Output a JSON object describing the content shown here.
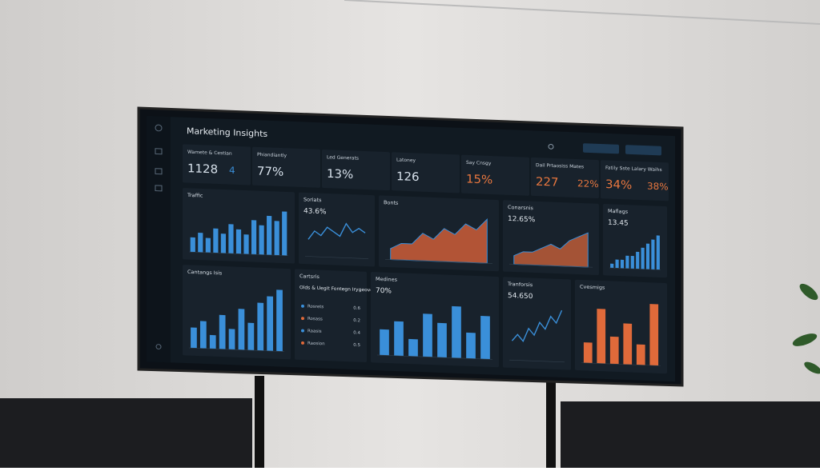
{
  "header": {
    "title": "Marketing Insights"
  },
  "kpis": [
    {
      "label": "Wamete & Cestian",
      "value": "1128",
      "extra": "4"
    },
    {
      "label": "Phiandiantly",
      "value": "77%"
    },
    {
      "label": "Led Generats",
      "value": "13%"
    },
    {
      "label": "Latoney",
      "value": "126"
    },
    {
      "label": "Say Cnsgy",
      "value": "15%"
    },
    {
      "label": "Dail Prtaosiss Mates",
      "value": "227",
      "extra": "22%"
    },
    {
      "label": "Fatily Sste Lalary Waihs",
      "value": "34%",
      "extra": "38%"
    }
  ],
  "panels": [
    {
      "title": "Traffic",
      "kind": "bar",
      "color": "#3a8fd9",
      "values": [
        3,
        4,
        3,
        5,
        4,
        6,
        5,
        4,
        7,
        6,
        8,
        7,
        9
      ]
    },
    {
      "title": "Soriats",
      "stat": "43.6%",
      "kind": "line",
      "color": "#3a8fd9",
      "values": [
        4,
        6,
        5,
        7,
        6,
        5,
        8,
        6,
        7,
        6
      ]
    },
    {
      "title": "Bonts",
      "kind": "area",
      "color": "#d9623a",
      "values": [
        2,
        3,
        3,
        5,
        4,
        6,
        5,
        7,
        6,
        8
      ]
    },
    {
      "title": "Conarsnis",
      "stat": "12.65%",
      "kind": "area",
      "color": "#c8603a",
      "values": [
        2,
        3,
        3,
        4,
        5,
        4,
        6,
        7,
        8
      ]
    },
    {
      "title": "Maflags",
      "stat": "13.45",
      "kind": "bar",
      "color": "#3a8fd9",
      "values": [
        1,
        2,
        2,
        3,
        3,
        4,
        5,
        6,
        7,
        8
      ]
    },
    {
      "title": "Cantangs Isis",
      "kind": "bar",
      "color": "#3a8fd9",
      "values": [
        3,
        4,
        2,
        5,
        3,
        6,
        4,
        7,
        8,
        9
      ]
    },
    {
      "title": "Cartsris",
      "stat": "Olds & Uegit Fontegn Irygeoves",
      "kind": "list",
      "items": [
        {
          "label": "Rosrets",
          "value": "0.6"
        },
        {
          "label": "Rosass",
          "value": "0.2"
        },
        {
          "label": "Raasis",
          "value": "0.4"
        },
        {
          "label": "Raosion",
          "value": "0.5"
        }
      ]
    },
    {
      "title": "Medines",
      "stat": "70%",
      "kind": "bar",
      "color": "#3a8fd9",
      "values": [
        3,
        4,
        2,
        5,
        4,
        6,
        3,
        5
      ]
    },
    {
      "title": "Tranforsis",
      "stat": "54.650",
      "kind": "line",
      "color": "#3a8fd9",
      "values": [
        3,
        4,
        3,
        5,
        4,
        6,
        5,
        7,
        6,
        8
      ]
    },
    {
      "title": "Cvesmigs",
      "kind": "bar",
      "color": "#e06a3a",
      "values": [
        3,
        8,
        4,
        6,
        3,
        9
      ]
    }
  ]
}
